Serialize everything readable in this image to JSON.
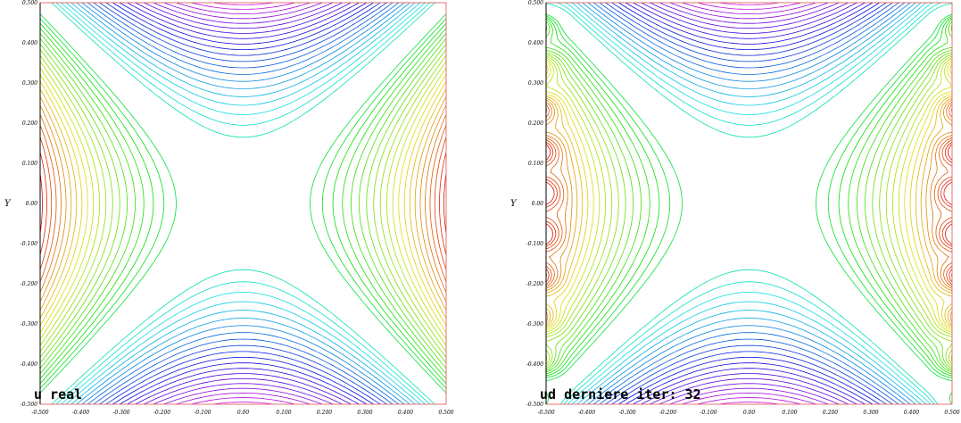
{
  "chart_data": [
    {
      "type": "contour",
      "title": "u real",
      "ylabel": "Y",
      "xlim": [
        -0.5,
        0.5
      ],
      "ylim": [
        -0.5,
        0.5
      ],
      "x_ticks": [
        "-0.500",
        "-0.400",
        "-0.300",
        "-0.200",
        "-0.100",
        "0.00",
        "0.100",
        "0.200",
        "0.300",
        "0.400",
        "0.500"
      ],
      "y_ticks": [
        "0.500",
        "0.400",
        "0.300",
        "0.200",
        "0.100",
        "0.00",
        "-0.100",
        "-0.200",
        "-0.300",
        "-0.400",
        "-0.500"
      ],
      "colormap": "hsv-rainbow",
      "noisy_boundary": false
    },
    {
      "type": "contour",
      "title": "ud derniere iter: 32",
      "ylabel": "Y",
      "xlim": [
        -0.5,
        0.5
      ],
      "ylim": [
        -0.5,
        0.5
      ],
      "x_ticks": [
        "-0.500",
        "-0.400",
        "-0.300",
        "-0.200",
        "-0.100",
        "0.00",
        "0.100",
        "0.200",
        "0.300",
        "0.400",
        "0.500"
      ],
      "y_ticks": [
        "0.500",
        "0.400",
        "0.300",
        "0.200",
        "0.100",
        "0.00",
        "-0.100",
        "-0.200",
        "-0.300",
        "-0.400",
        "-0.500"
      ],
      "colormap": "hsv-rainbow",
      "noisy_boundary": true
    }
  ]
}
